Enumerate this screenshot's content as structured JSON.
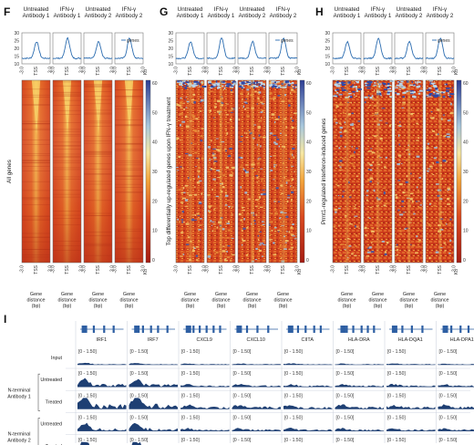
{
  "colors": {
    "heat_low": "#c8361b",
    "heat_mid": "#f2b23a",
    "heat_high": "#3d4fa8",
    "profile_line": "#2b6cb0",
    "track_fill": "#1e3f73",
    "gene_model": "#2e5fa3"
  },
  "heatmap_panels": [
    {
      "label": "F",
      "row_label": "All genes",
      "columns": [
        "Untreated\nAntibody 1",
        "IFN-γ\nAntibody 1",
        "Untreated\nAntibody 2",
        "IFN-γ\nAntibody 2"
      ],
      "legend": "genes",
      "profile_yticks": [
        "30",
        "25",
        "20",
        "15",
        "10"
      ],
      "colorbar_ticks": [
        "60",
        "50",
        "40",
        "30",
        "20",
        "10",
        "0"
      ],
      "unit": "Kb",
      "profile_xticks": [
        "-3.0",
        "TSS",
        "3.0"
      ],
      "bottom_ticks": [
        "-3.0",
        "TSS",
        "3.0"
      ],
      "xlabel": "Gene\ndistance\n(bp)"
    },
    {
      "label": "G",
      "row_label": "Top differentially up-regulated genes upon IFN-γ treatment",
      "columns": [
        "Untreated\nAntibody 1",
        "IFN-γ\nAntibody 1",
        "Untreated\nAntibody 2",
        "IFN-γ\nAntibody 2"
      ],
      "legend": "genes",
      "profile_yticks": [
        "30",
        "25",
        "20",
        "15",
        "10"
      ],
      "colorbar_ticks": [
        "60",
        "50",
        "40",
        "30",
        "20",
        "10",
        "0"
      ],
      "unit": "Kb",
      "profile_xticks": [
        "-3.0",
        "TSS",
        "3.0"
      ],
      "bottom_ticks": [
        "-3.0",
        "TSS",
        "3.0"
      ],
      "xlabel": "Gene\ndistance\n(bp)"
    },
    {
      "label": "H",
      "row_label": "Prmt1-regulated interferon-induced genes",
      "columns": [
        "Untreated\nAntibody 1",
        "IFN-γ\nAntibody 1",
        "Untreated\nAntibody 2",
        "IFN-γ\nAntibody 2"
      ],
      "legend": "genes",
      "profile_yticks": [
        "30",
        "25",
        "20",
        "15",
        "10"
      ],
      "colorbar_ticks": [
        "60",
        "50",
        "40",
        "30",
        "20",
        "10",
        "0"
      ],
      "unit": "Kb",
      "profile_xticks": [
        "-3.0",
        "TSS",
        "3.0"
      ],
      "bottom_ticks": [
        "-3.0",
        "TSS",
        "3.0"
      ],
      "xlabel": "Gene\ndistance\n(bp)"
    }
  ],
  "browser": {
    "label": "I",
    "genes": [
      "IRF1",
      "IRF7",
      "CXCL9",
      "CXCL10",
      "CIITA",
      "HLA-DRA",
      "HLA-DQA1",
      "HLA-DPA1"
    ],
    "range_label": "[0 - 1.50]",
    "groups": [
      {
        "name": "",
        "tracks": [
          "Input"
        ]
      },
      {
        "name": "N-terminal\nAntibody 1",
        "tracks": [
          "Untreated",
          "Treated"
        ]
      },
      {
        "name": "N-terminal\nAntibody 2",
        "tracks": [
          "Untreated",
          "Treated"
        ]
      }
    ]
  }
}
